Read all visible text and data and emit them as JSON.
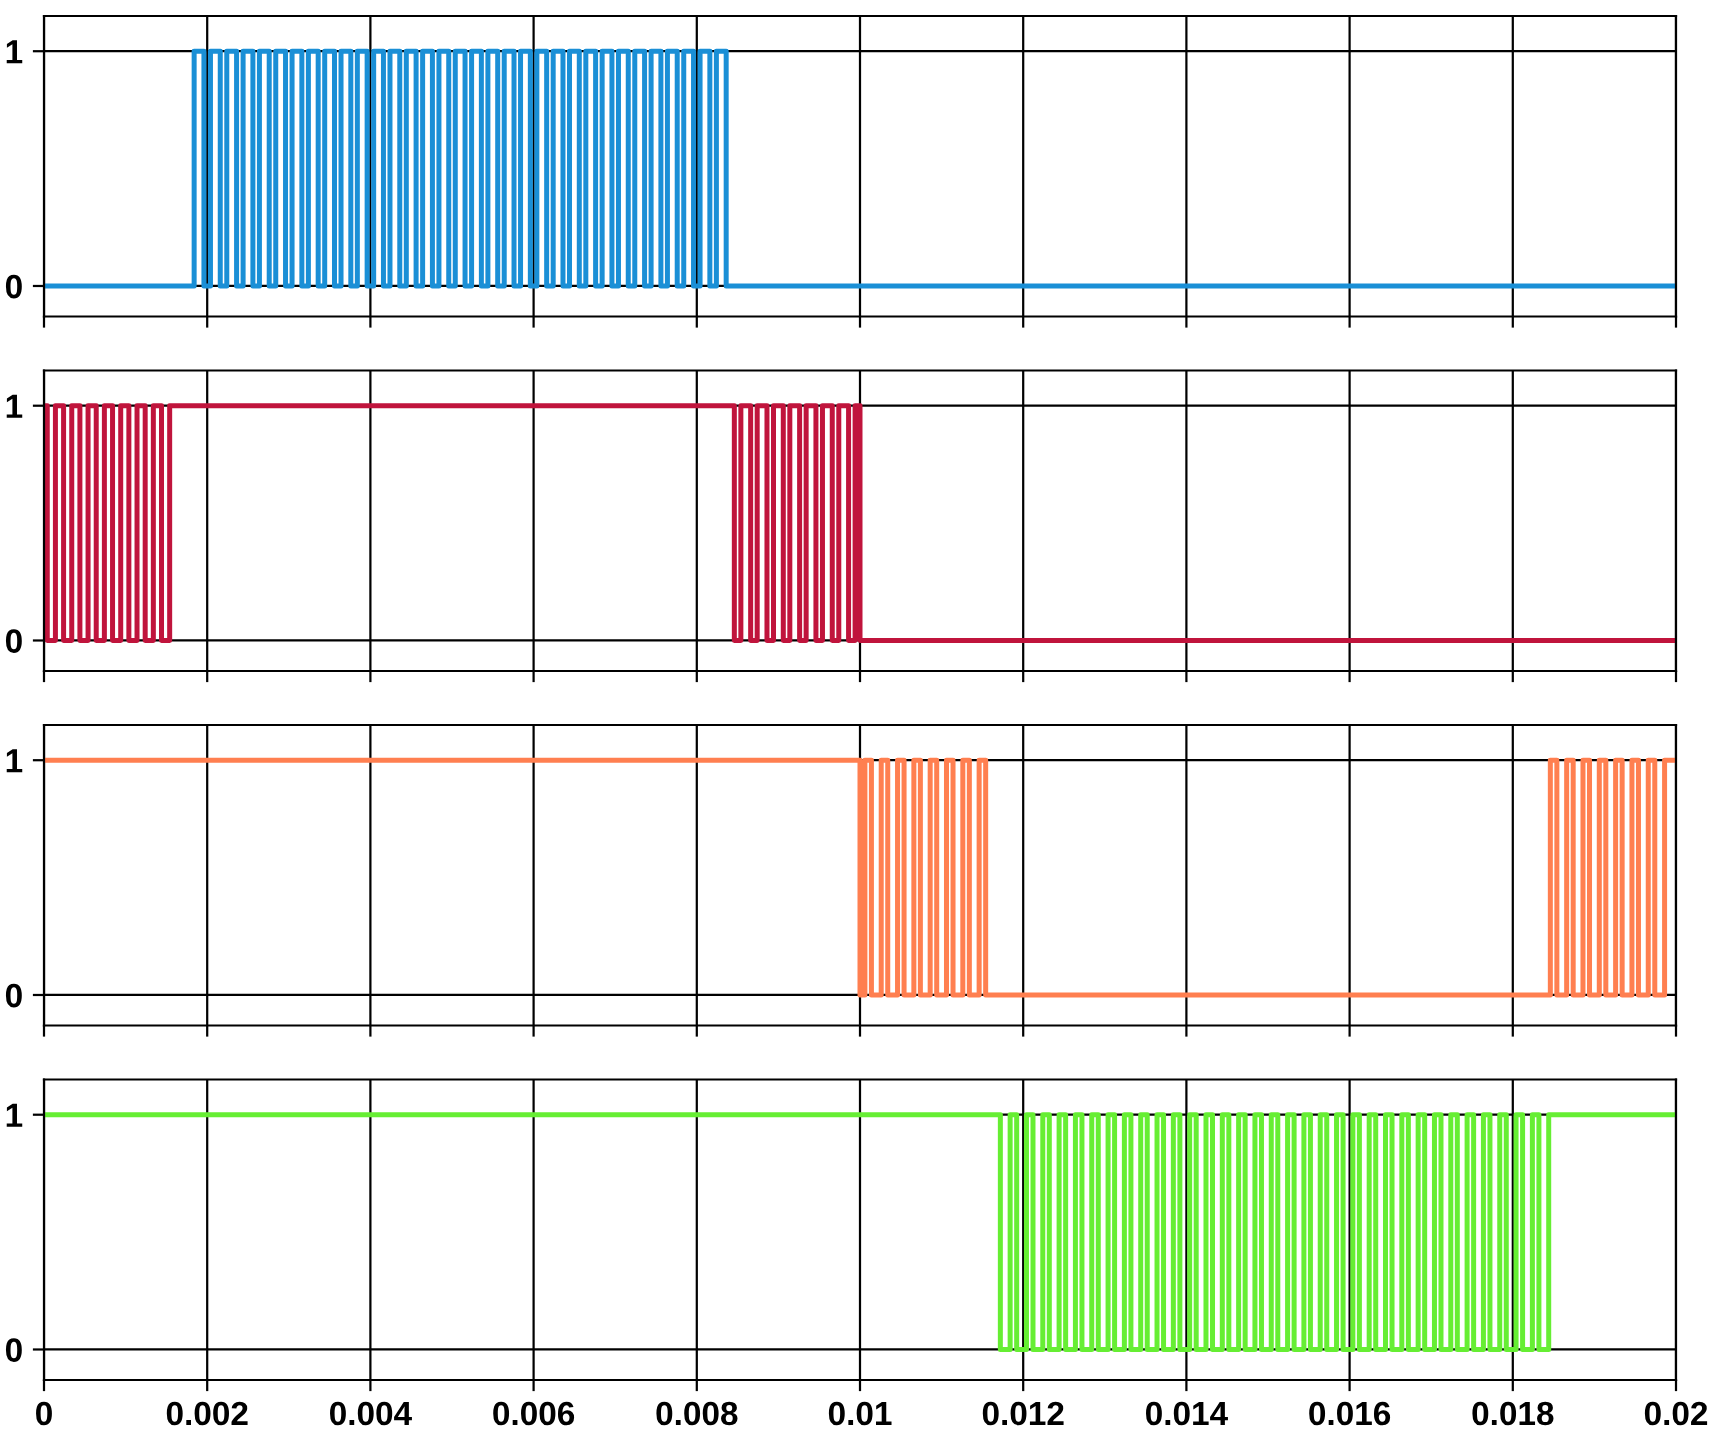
{
  "chart_data": [
    {
      "type": "step",
      "color": "#1a8fd6",
      "xlim": [
        0,
        0.02
      ],
      "ylim": [
        -0.13,
        1.15
      ],
      "yticks": [
        0,
        1
      ],
      "xticks": [
        0,
        0.002,
        0.004,
        0.006,
        0.008,
        0.01,
        0.012,
        0.014,
        0.016,
        0.018,
        0.02
      ],
      "grid": true,
      "tick_labels": "y",
      "x": [
        0,
        0.00184,
        0.00196,
        0.00204,
        0.00216,
        0.00224,
        0.00236,
        0.00244,
        0.00256,
        0.00264,
        0.00276,
        0.00284,
        0.00296,
        0.00304,
        0.00316,
        0.00324,
        0.00336,
        0.00344,
        0.00356,
        0.00364,
        0.00376,
        0.00384,
        0.00396,
        0.00404,
        0.00416,
        0.00424,
        0.00436,
        0.00444,
        0.00456,
        0.00464,
        0.00476,
        0.00484,
        0.00496,
        0.00504,
        0.00516,
        0.00524,
        0.00536,
        0.00544,
        0.00556,
        0.00564,
        0.00576,
        0.00584,
        0.00596,
        0.00604,
        0.00616,
        0.00624,
        0.00636,
        0.00644,
        0.00656,
        0.00664,
        0.00676,
        0.00684,
        0.00696,
        0.00704,
        0.00716,
        0.00724,
        0.00736,
        0.00744,
        0.00756,
        0.00764,
        0.00776,
        0.00784,
        0.00796,
        0.00804,
        0.00816,
        0.00824,
        0.00836,
        0.02
      ],
      "values": [
        0,
        1,
        0,
        1,
        0,
        1,
        0,
        1,
        0,
        1,
        0,
        1,
        0,
        1,
        0,
        1,
        0,
        1,
        0,
        1,
        0,
        1,
        0,
        1,
        0,
        1,
        0,
        1,
        0,
        1,
        0,
        1,
        0,
        1,
        0,
        1,
        0,
        1,
        0,
        1,
        0,
        1,
        0,
        1,
        0,
        1,
        0,
        1,
        0,
        1,
        0,
        1,
        0,
        1,
        0,
        1,
        0,
        1,
        0,
        1,
        0,
        1,
        0,
        1,
        0,
        1,
        0,
        0
      ]
    },
    {
      "type": "step",
      "color": "#c0143c",
      "xlim": [
        0,
        0.02
      ],
      "ylim": [
        -0.13,
        1.15
      ],
      "yticks": [
        0,
        1
      ],
      "xticks": [
        0,
        0.002,
        0.004,
        0.006,
        0.008,
        0.01,
        0.012,
        0.014,
        0.016,
        0.018,
        0.02
      ],
      "grid": true,
      "tick_labels": "y",
      "x": [
        0,
        4e-05,
        0.00014,
        0.00024,
        0.00034,
        0.00044,
        0.00054,
        0.00064,
        0.00074,
        0.00084,
        0.00094,
        0.00104,
        0.00114,
        0.00124,
        0.00134,
        0.00144,
        0.00154,
        0.00846,
        0.00854,
        0.00866,
        0.00874,
        0.00886,
        0.00894,
        0.00906,
        0.00914,
        0.00926,
        0.00934,
        0.00946,
        0.00954,
        0.00966,
        0.00974,
        0.00986,
        0.00994,
        0.01,
        0.02
      ],
      "values": [
        1,
        0,
        1,
        0,
        1,
        0,
        1,
        0,
        1,
        0,
        1,
        0,
        1,
        0,
        1,
        0,
        1,
        0,
        1,
        0,
        1,
        0,
        1,
        0,
        1,
        0,
        1,
        0,
        1,
        0,
        1,
        0,
        1,
        0,
        0
      ]
    },
    {
      "type": "step",
      "color": "#ff7f50",
      "xlim": [
        0,
        0.02
      ],
      "ylim": [
        -0.13,
        1.15
      ],
      "yticks": [
        0,
        1
      ],
      "xticks": [
        0,
        0.002,
        0.004,
        0.006,
        0.008,
        0.01,
        0.012,
        0.014,
        0.016,
        0.018,
        0.02
      ],
      "grid": true,
      "tick_labels": "y",
      "x": [
        0,
        0.01,
        0.01006,
        0.01014,
        0.01026,
        0.01034,
        0.01046,
        0.01054,
        0.01066,
        0.01074,
        0.01086,
        0.01094,
        0.01106,
        0.01114,
        0.01126,
        0.01134,
        0.01146,
        0.01154,
        0.01846,
        0.01854,
        0.01866,
        0.01874,
        0.01886,
        0.01894,
        0.01906,
        0.01914,
        0.01926,
        0.01934,
        0.01946,
        0.01954,
        0.01966,
        0.01974,
        0.01986,
        0.02
      ],
      "values": [
        1,
        0,
        1,
        0,
        1,
        0,
        1,
        0,
        1,
        0,
        1,
        0,
        1,
        0,
        1,
        0,
        1,
        0,
        1,
        0,
        1,
        0,
        1,
        0,
        1,
        0,
        1,
        0,
        1,
        0,
        1,
        0,
        1,
        1
      ]
    },
    {
      "type": "step",
      "color": "#66ee33",
      "xlim": [
        0,
        0.02
      ],
      "ylim": [
        -0.13,
        1.15
      ],
      "yticks": [
        0,
        1
      ],
      "xticks": [
        0,
        0.002,
        0.004,
        0.006,
        0.008,
        0.01,
        0.012,
        0.014,
        0.016,
        0.018,
        0.02
      ],
      "grid": true,
      "x": [
        0,
        0.01172,
        0.01184,
        0.01192,
        0.01204,
        0.01212,
        0.01224,
        0.01232,
        0.01244,
        0.01252,
        0.01264,
        0.01272,
        0.01284,
        0.01292,
        0.01304,
        0.01312,
        0.01324,
        0.01332,
        0.01344,
        0.01352,
        0.01364,
        0.01372,
        0.01384,
        0.01392,
        0.01404,
        0.01412,
        0.01424,
        0.01432,
        0.01444,
        0.01452,
        0.01464,
        0.01472,
        0.01484,
        0.01492,
        0.01504,
        0.01512,
        0.01524,
        0.01532,
        0.01544,
        0.01552,
        0.01564,
        0.01572,
        0.01584,
        0.01592,
        0.01604,
        0.01612,
        0.01624,
        0.01632,
        0.01644,
        0.01652,
        0.01664,
        0.01672,
        0.01684,
        0.01692,
        0.01704,
        0.01712,
        0.01724,
        0.01732,
        0.01744,
        0.01752,
        0.01764,
        0.01772,
        0.01784,
        0.01792,
        0.01804,
        0.01812,
        0.01824,
        0.01832,
        0.01844,
        0.02
      ],
      "values": [
        1,
        0,
        1,
        0,
        1,
        0,
        1,
        0,
        1,
        0,
        1,
        0,
        1,
        0,
        1,
        0,
        1,
        0,
        1,
        0,
        1,
        0,
        1,
        0,
        1,
        0,
        1,
        0,
        1,
        0,
        1,
        0,
        1,
        0,
        1,
        0,
        1,
        0,
        1,
        0,
        1,
        0,
        1,
        0,
        1,
        0,
        1,
        0,
        1,
        0,
        1,
        0,
        1,
        0,
        1,
        0,
        1,
        0,
        1,
        0,
        1,
        0,
        1,
        0,
        1,
        0,
        1,
        0,
        1,
        1
      ]
    }
  ]
}
